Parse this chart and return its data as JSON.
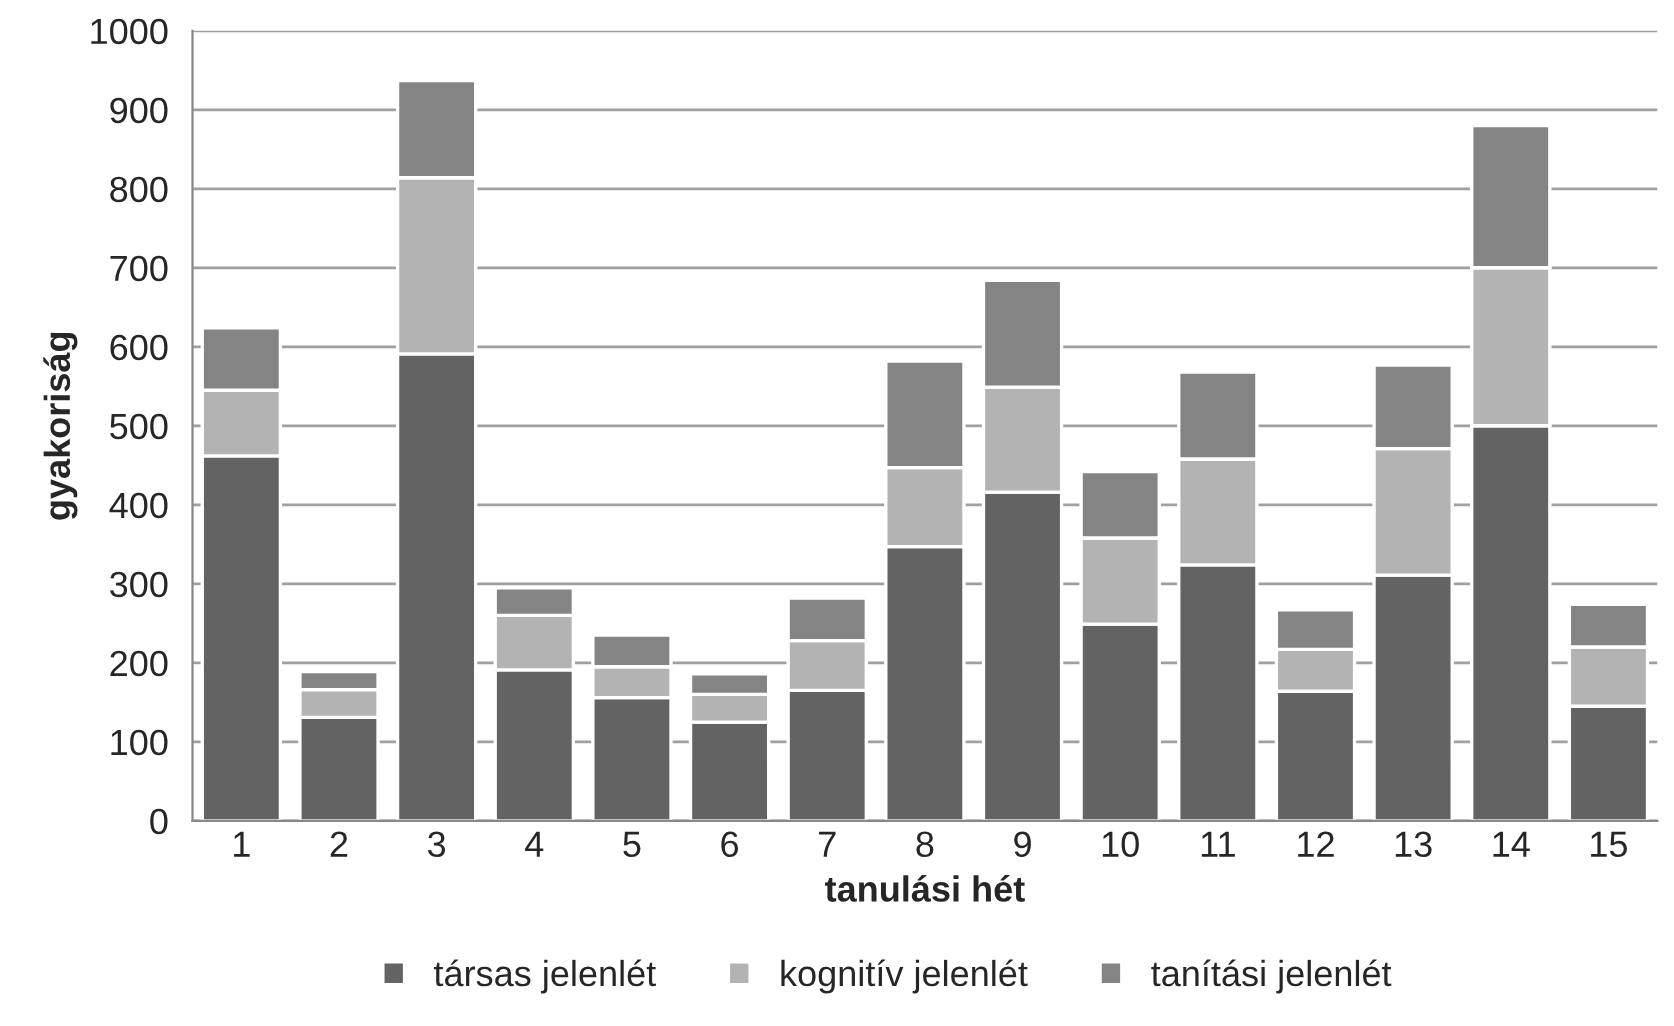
{
  "chart_data": {
    "type": "bar",
    "stacked": true,
    "xlabel": "tanulási hét",
    "ylabel": "gyakoriság",
    "categories": [
      "1",
      "2",
      "3",
      "4",
      "5",
      "6",
      "7",
      "8",
      "9",
      "10",
      "11",
      "12",
      "13",
      "14",
      "15"
    ],
    "series": [
      {
        "name": "társas jelenlét",
        "color": "#636363",
        "values": [
          462,
          131,
          591,
          191,
          156,
          125,
          165,
          347,
          416,
          249,
          324,
          164,
          311,
          500,
          145
        ]
      },
      {
        "name": "kognitív jelenlét",
        "color": "#b3b3b3",
        "values": [
          83,
          35,
          223,
          69,
          39,
          35,
          63,
          100,
          133,
          109,
          134,
          53,
          160,
          200,
          75
        ]
      },
      {
        "name": "tanítási jelenlét",
        "color": "#848484",
        "values": [
          79,
          23,
          123,
          35,
          40,
          26,
          54,
          135,
          135,
          84,
          110,
          50,
          106,
          180,
          54
        ]
      }
    ],
    "ylim": [
      0,
      1000
    ],
    "yticks": [
      0,
      100,
      200,
      300,
      400,
      500,
      600,
      700,
      800,
      900,
      1000
    ],
    "grid": "y",
    "legend": "bottom"
  }
}
